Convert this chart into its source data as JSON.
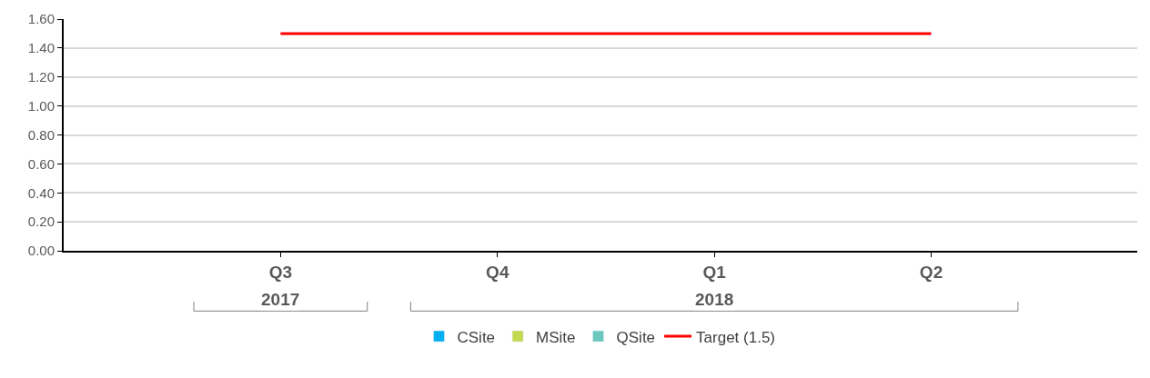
{
  "chart_data": {
    "type": "bar",
    "categories": [
      "Q3",
      "Q4",
      "Q1",
      "Q2"
    ],
    "series": [
      {
        "name": "CSite",
        "color": "#00b0f0",
        "values": [
          null,
          null,
          null,
          null
        ]
      },
      {
        "name": "MSite",
        "color": "#c4d84f",
        "values": [
          null,
          null,
          null,
          null
        ]
      },
      {
        "name": "QSite",
        "color": "#6cc8be",
        "values": [
          null,
          null,
          null,
          null
        ]
      },
      {
        "name": "Target (1.5)",
        "type": "line",
        "color": "#ff0000",
        "values": [
          1.5,
          1.5,
          1.5,
          1.5
        ]
      }
    ],
    "annotations": [
      "2017",
      "2018"
    ],
    "ylim": [
      0,
      1.6
    ],
    "yticks": [
      {
        "value": 0,
        "label": "0.00"
      },
      {
        "value": 0.2,
        "label": "0.20"
      },
      {
        "value": 0.4,
        "label": "0.40"
      },
      {
        "value": 0.6,
        "label": "0.60"
      },
      {
        "value": 0.8,
        "label": "0.80"
      },
      {
        "value": 1.0,
        "label": "1.00"
      },
      {
        "value": 1.2,
        "label": "1.20"
      },
      {
        "value": 1.4,
        "label": "1.40"
      },
      {
        "value": 1.6,
        "label": "1.60"
      }
    ],
    "grid": "y",
    "legend": "bottom",
    "marker": "none",
    "line_style": "solid"
  }
}
